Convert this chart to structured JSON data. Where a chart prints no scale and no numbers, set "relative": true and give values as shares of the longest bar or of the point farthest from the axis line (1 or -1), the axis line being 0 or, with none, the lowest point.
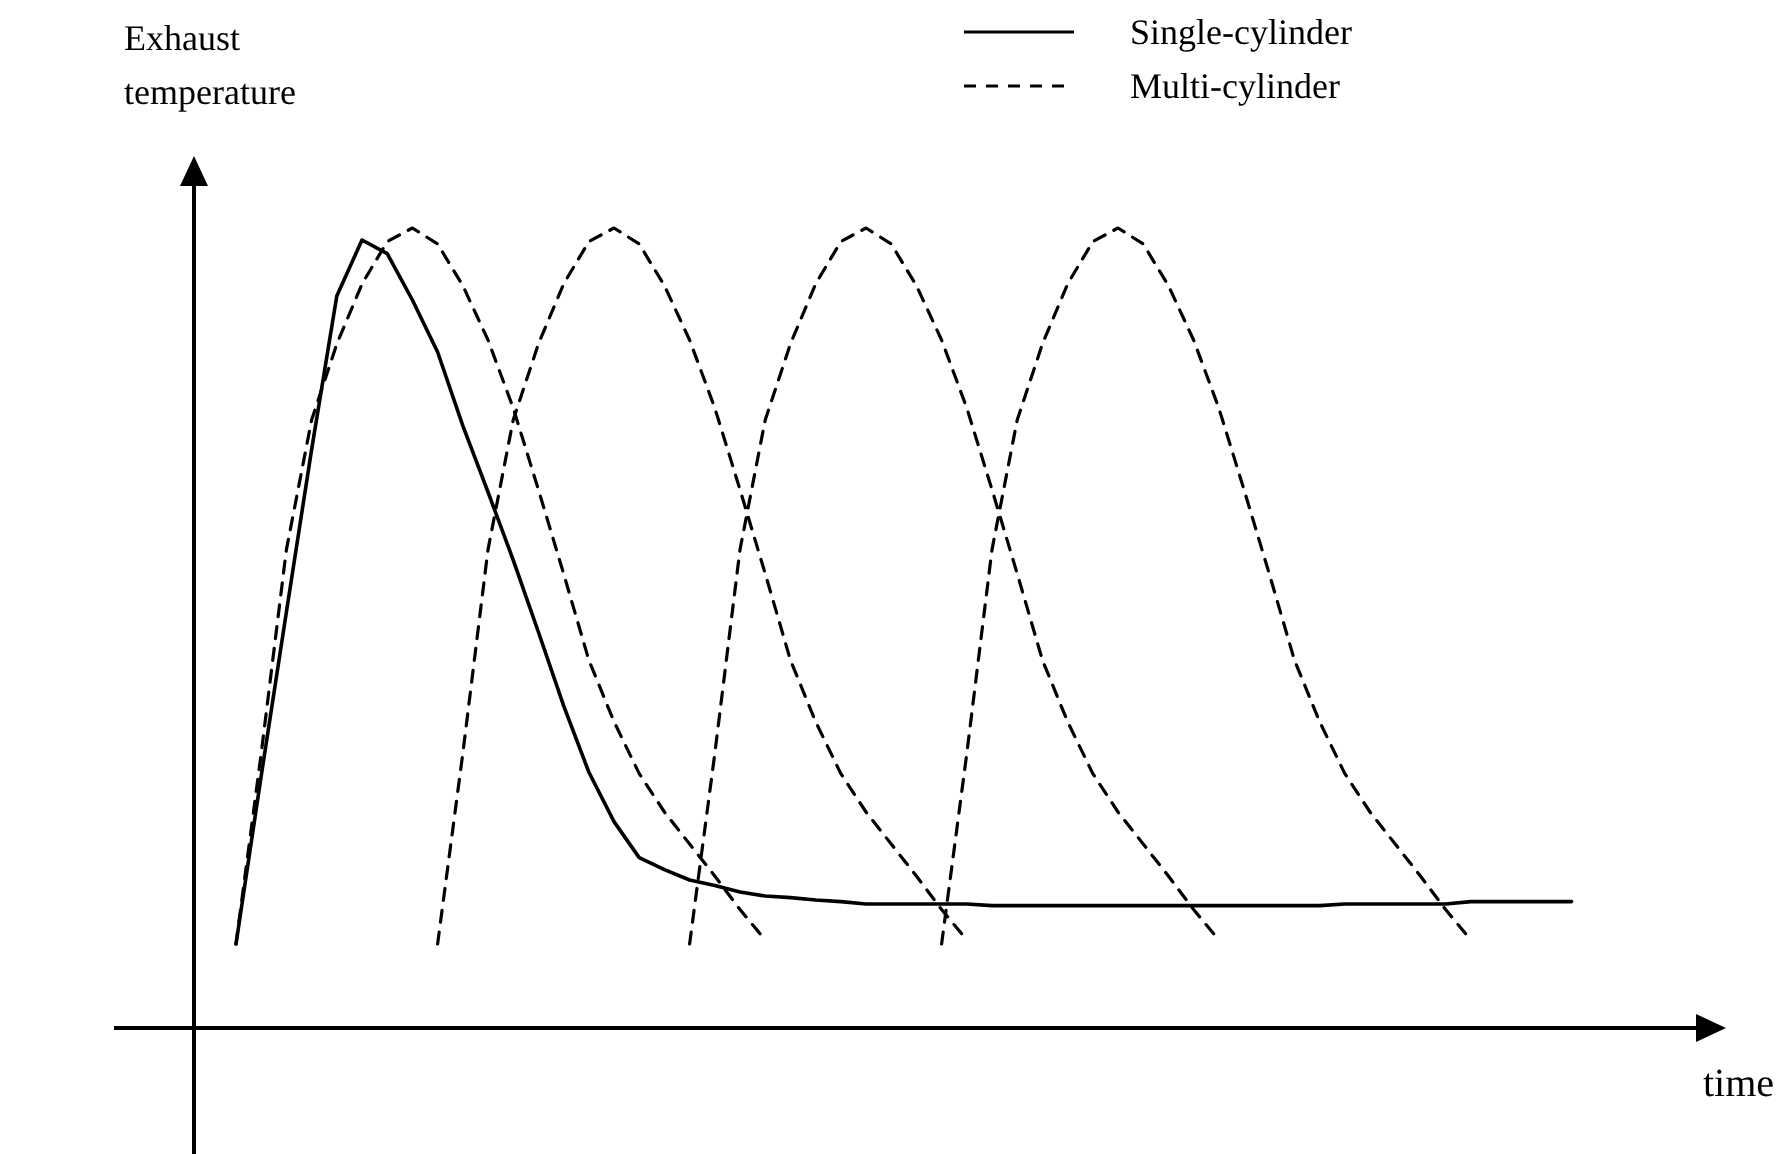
{
  "chart_data": {
    "type": "line",
    "relative": true,
    "xlabel": "time",
    "ylabel": "Exhaust temperature",
    "legend": "top right",
    "categories": [
      null,
      null,
      null,
      null,
      null,
      null,
      null,
      null,
      null,
      null,
      null,
      null,
      null,
      null,
      null,
      null,
      null,
      null,
      null,
      null,
      null,
      null,
      null,
      null,
      null,
      null,
      null,
      null,
      null,
      null,
      null,
      null,
      null,
      null,
      null,
      null,
      null,
      null,
      null,
      null,
      null,
      null,
      null,
      null,
      null,
      null,
      null,
      null,
      null,
      null,
      null,
      null,
      null,
      null
    ],
    "series": [
      {
        "name": "Single-cylinder",
        "color": "#000000",
        "line_style": "solid",
        "values": [
          0.105,
          0.315,
          0.52,
          0.723,
          0.915,
          0.985,
          0.968,
          0.91,
          0.845,
          0.753,
          0.67,
          0.585,
          0.495,
          0.403,
          0.32,
          0.258,
          0.213,
          0.198,
          0.185,
          0.178,
          0.17,
          0.165,
          0.163,
          0.16,
          0.158,
          0.155,
          0.155,
          0.155,
          0.155,
          0.155,
          0.153,
          0.153,
          0.153,
          0.153,
          0.153,
          0.153,
          0.153,
          0.153,
          0.153,
          0.153,
          0.153,
          0.153,
          0.153,
          0.153,
          0.155,
          0.155,
          0.155,
          0.155,
          0.155,
          0.158,
          0.158,
          0.158,
          0.158,
          0.158
        ]
      },
      {
        "name": "Multi-cylinder",
        "color": "#000000",
        "line_style": "dashed",
        "values": [
          0.105,
          0.343,
          0.598,
          0.76,
          0.855,
          0.93,
          0.983,
          1,
          0.98,
          0.928,
          0.86,
          0.775,
          0.673,
          0.568,
          0.46,
          0.383,
          0.318,
          0.27,
          0.23,
          0.19,
          0.148,
          0.11,
          null,
          null,
          null,
          null,
          null,
          null,
          null,
          null,
          null,
          null,
          null,
          null,
          null,
          null,
          null,
          null,
          null,
          null,
          null,
          null,
          null,
          null,
          null,
          null,
          null,
          null,
          null,
          null,
          null,
          null,
          null,
          null
        ]
      },
      {
        "color": "#000000",
        "line_style": "dashed",
        "values": [
          null,
          null,
          null,
          null,
          null,
          null,
          null,
          null,
          0.105,
          0.343,
          0.598,
          0.76,
          0.855,
          0.93,
          0.983,
          1,
          0.98,
          0.928,
          0.86,
          0.775,
          0.673,
          0.568,
          0.46,
          0.383,
          0.318,
          0.27,
          0.23,
          0.19,
          0.148,
          0.11,
          null,
          null,
          null,
          null,
          null,
          null,
          null,
          null,
          null,
          null,
          null,
          null,
          null,
          null,
          null,
          null,
          null,
          null,
          null,
          null,
          null,
          null,
          null,
          null
        ]
      },
      {
        "color": "#000000",
        "line_style": "dashed",
        "values": [
          null,
          null,
          null,
          null,
          null,
          null,
          null,
          null,
          null,
          null,
          null,
          null,
          null,
          null,
          null,
          null,
          null,
          null,
          0.105,
          0.343,
          0.598,
          0.76,
          0.855,
          0.93,
          0.983,
          1,
          0.98,
          0.928,
          0.86,
          0.775,
          0.673,
          0.568,
          0.46,
          0.383,
          0.318,
          0.27,
          0.23,
          0.19,
          0.148,
          0.11,
          null,
          null,
          null,
          null,
          null,
          null,
          null,
          null,
          null,
          null,
          null,
          null,
          null,
          null
        ]
      },
      {
        "color": "#000000",
        "line_style": "dashed",
        "values": [
          null,
          null,
          null,
          null,
          null,
          null,
          null,
          null,
          null,
          null,
          null,
          null,
          null,
          null,
          null,
          null,
          null,
          null,
          null,
          null,
          null,
          null,
          null,
          null,
          null,
          null,
          null,
          null,
          0.105,
          0.343,
          0.598,
          0.76,
          0.855,
          0.93,
          0.983,
          1,
          0.98,
          0.928,
          0.86,
          0.775,
          0.673,
          0.568,
          0.46,
          0.383,
          0.318,
          0.27,
          0.23,
          0.19,
          0.148,
          0.11,
          null,
          null,
          null,
          null
        ]
      }
    ]
  }
}
